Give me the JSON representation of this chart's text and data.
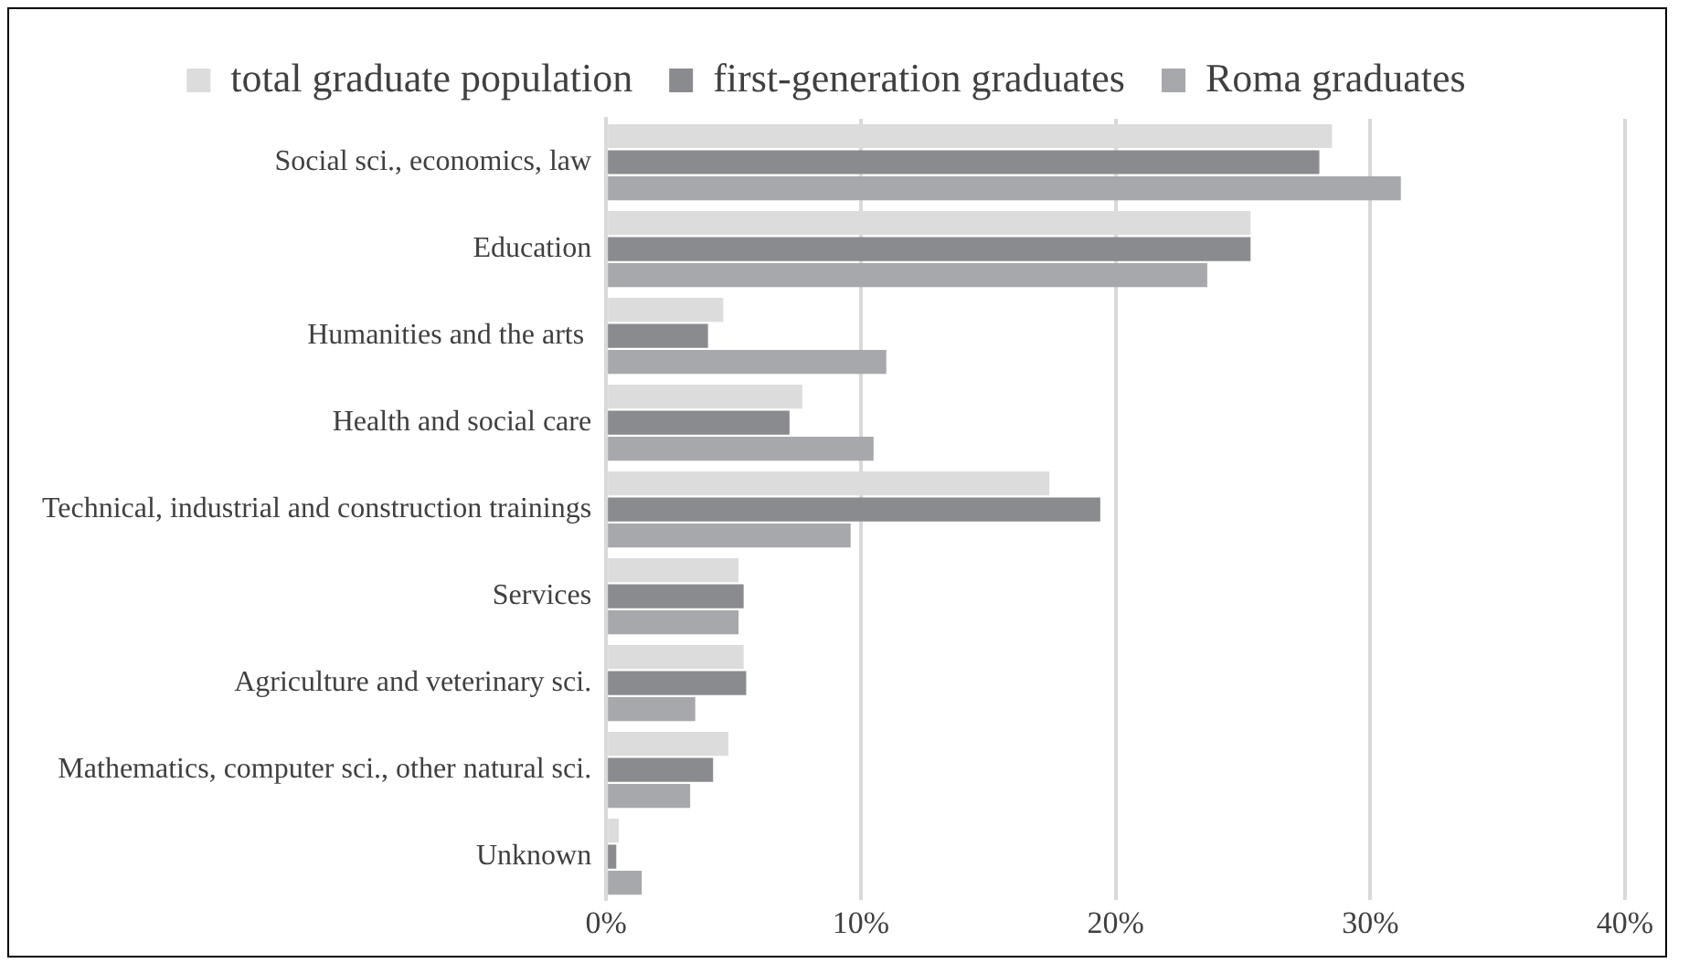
{
  "chart_data": {
    "type": "bar",
    "orientation": "horizontal",
    "categories": [
      "Social sci., economics, law",
      "Education",
      "Humanities and the arts ",
      "Health and social care",
      "Technical, industrial and construction trainings",
      "Services",
      "Agriculture and veterinary sci.",
      "Mathematics, computer sci., other natural sci.",
      "Unknown"
    ],
    "series": [
      {
        "name": "total graduate population",
        "color": "#dcdcdd",
        "values": [
          28.5,
          25.3,
          4.6,
          7.7,
          17.4,
          5.2,
          5.4,
          4.8,
          0.5
        ]
      },
      {
        "name": "first-generation graduates",
        "color": "#8a8b8f",
        "values": [
          28.0,
          25.3,
          4.0,
          7.2,
          19.4,
          5.4,
          5.5,
          4.2,
          0.4
        ]
      },
      {
        "name": "Roma graduates",
        "color": "#a7a8ab",
        "values": [
          31.2,
          23.6,
          11.0,
          10.5,
          9.6,
          5.2,
          3.5,
          3.3,
          1.4
        ]
      }
    ],
    "xlim": [
      0,
      40
    ],
    "xticks": [
      {
        "value": 0,
        "label": "0%"
      },
      {
        "value": 10,
        "label": "10%"
      },
      {
        "value": 20,
        "label": "20%"
      },
      {
        "value": 30,
        "label": "30%"
      },
      {
        "value": 40,
        "label": "40%"
      }
    ],
    "grid": "x",
    "legend": "top"
  }
}
